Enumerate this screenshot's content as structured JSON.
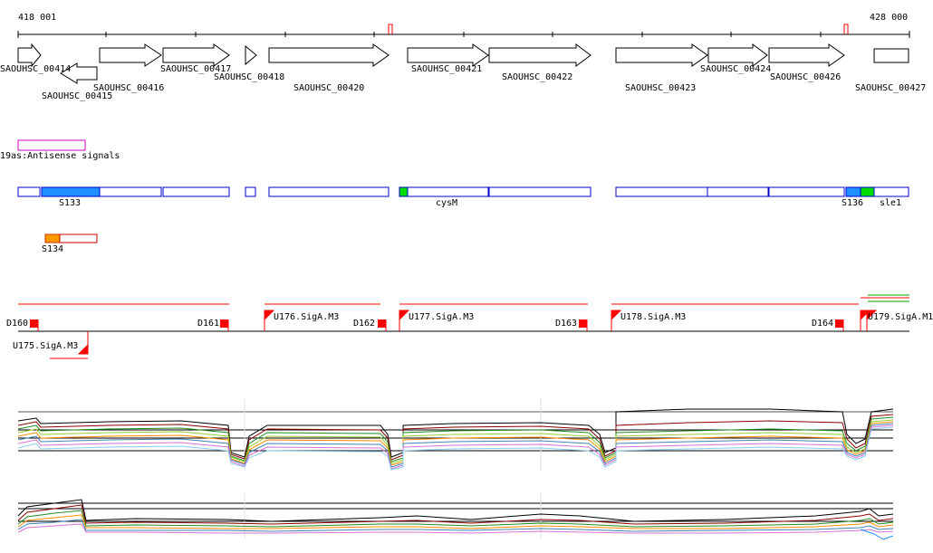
{
  "coords": {
    "start": "418 001",
    "end": "428 000"
  },
  "genes": [
    {
      "label": "SAOUHSC_00414"
    },
    {
      "label": "SAOUHSC_00415"
    },
    {
      "label": "SAOUHSC_00416"
    },
    {
      "label": "SAOUHSC_00417"
    },
    {
      "label": "SAOUHSC_00418"
    },
    {
      "label": "SAOUHSC_00420"
    },
    {
      "label": "SAOUHSC_00421"
    },
    {
      "label": "SAOUHSC_00422"
    },
    {
      "label": "SAOUHSC_00423"
    },
    {
      "label": "SAOUHSC_00424"
    },
    {
      "label": "SAOUHSC_00426"
    },
    {
      "label": "SAOUHSC_00427"
    }
  ],
  "antisense": {
    "label": "19as:Antisense signals"
  },
  "features": [
    {
      "label": "S133"
    },
    {
      "label": "cysM"
    },
    {
      "label": "S136"
    },
    {
      "label": "sle1"
    },
    {
      "label": "S134"
    }
  ],
  "transcripts": [
    {
      "label": "D160"
    },
    {
      "label": "D161"
    },
    {
      "label": "U176.SigA.M3"
    },
    {
      "label": "D162"
    },
    {
      "label": "U177.SigA.M3"
    },
    {
      "label": "D163"
    },
    {
      "label": "U178.SigA.M3"
    },
    {
      "label": "D164"
    },
    {
      "label": "U179.SigA.M1"
    },
    {
      "label": "U175.SigA.M3"
    }
  ],
  "colors": {
    "strand_box": "#0000cc",
    "feature_blue": "#1e90ff",
    "feature_green": "#00dd00",
    "feature_orange": "#ff9900",
    "promoter_red": "#ff0000",
    "antisense_box": "#cc00cc"
  }
}
